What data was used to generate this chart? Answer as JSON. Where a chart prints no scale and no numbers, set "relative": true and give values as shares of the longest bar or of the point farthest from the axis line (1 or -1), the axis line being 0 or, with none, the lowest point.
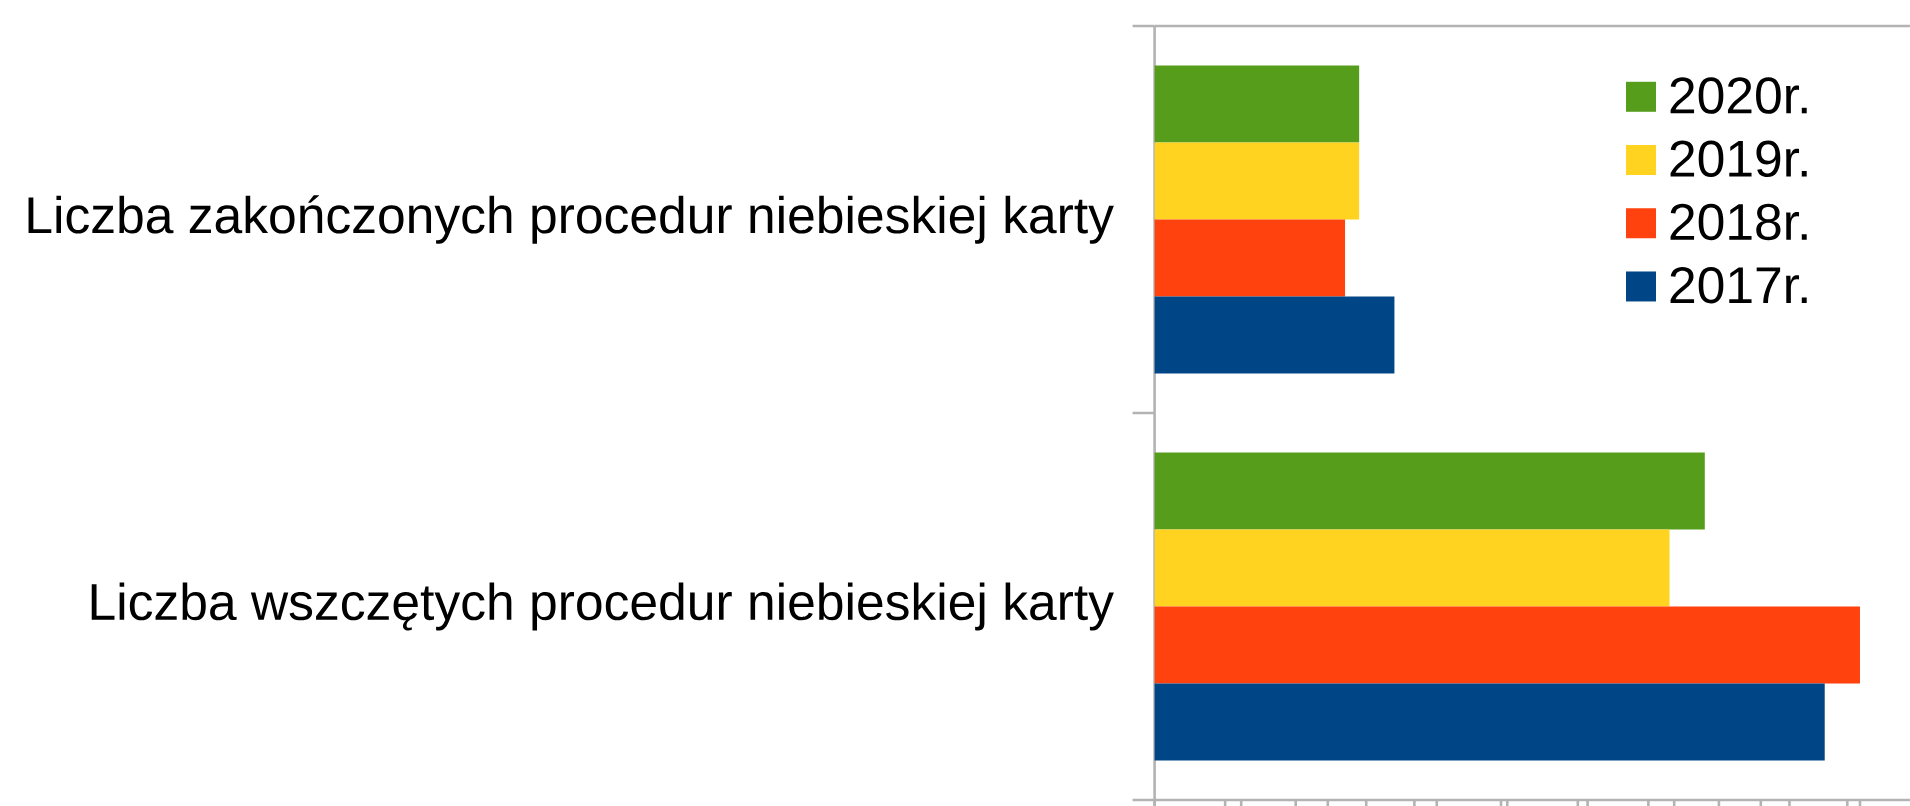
{
  "chart_data": {
    "type": "bar",
    "orientation": "horizontal",
    "relative": true,
    "legend": "top right",
    "categories": [
      "Liczba zakończonych procedur niebieskiej karty",
      "Liczba wszczętych procedur niebieskiej karty"
    ],
    "series": [
      {
        "name": "2020r.",
        "color": "#579d1c",
        "values": [
          0.29,
          0.78
        ]
      },
      {
        "name": "2019r.",
        "color": "#ffd320",
        "values": [
          0.29,
          0.73
        ]
      },
      {
        "name": "2018r.",
        "color": "#ff420e",
        "values": [
          0.27,
          1
        ]
      },
      {
        "name": "2017r.",
        "color": "#004586",
        "values": [
          0.34,
          0.95
        ]
      }
    ]
  }
}
